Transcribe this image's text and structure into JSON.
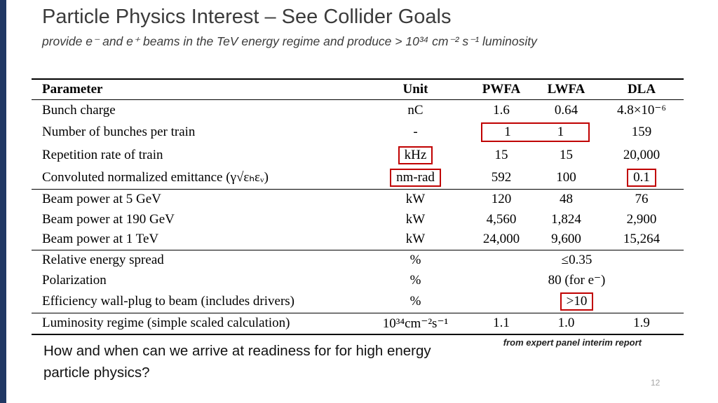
{
  "slide": {
    "title": "Particle Physics Interest – See Collider Goals",
    "subtitle": "provide e⁻ and e⁺ beams in the TeV energy regime and produce > 10³⁴ cm⁻² s⁻¹ luminosity",
    "question": "How and when can we arrive at readiness for for high energy particle physics?",
    "source_note": "from expert panel interim report",
    "page_number": "12"
  },
  "colors": {
    "highlight_red": "#c00000",
    "sidebar_navy": "#203864"
  },
  "table": {
    "headers": {
      "parameter": "Parameter",
      "unit": "Unit",
      "pwfa": "PWFA",
      "lwfa": "LWFA",
      "dla": "DLA"
    },
    "rows": [
      {
        "param": "Bunch charge",
        "unit": "nC",
        "pwfa": "1.6",
        "lwfa": "0.64",
        "dla": "4.8×10⁻⁶"
      },
      {
        "param": "Number of bunches per train",
        "unit": "-",
        "pwfa": "1",
        "lwfa": "1",
        "dla": "159",
        "highlighted": "pwfa and lwfa boxed together in red"
      },
      {
        "param": "Repetition rate of train",
        "unit": "kHz",
        "pwfa": "15",
        "lwfa": "15",
        "dla": "20,000",
        "highlighted": "unit boxed in red"
      },
      {
        "param": "Convoluted normalized emittance (γ√εₕεᵥ)",
        "unit": "nm-rad",
        "pwfa": "592",
        "lwfa": "100",
        "dla": "0.1",
        "highlighted": "unit and dla boxed in red"
      },
      {
        "param": "Beam power at 5 GeV",
        "unit": "kW",
        "pwfa": "120",
        "lwfa": "48",
        "dla": "76"
      },
      {
        "param": "Beam power at 190 GeV",
        "unit": "kW",
        "pwfa": "4,560",
        "lwfa": "1,824",
        "dla": "2,900"
      },
      {
        "param": "Beam power at 1 TeV",
        "unit": "kW",
        "pwfa": "24,000",
        "lwfa": "9,600",
        "dla": "15,264"
      },
      {
        "param": "Relative energy spread",
        "unit": "%",
        "span_value": "≤0.35"
      },
      {
        "param": "Polarization",
        "unit": "%",
        "span_value": "80 (for e⁻)"
      },
      {
        "param": "Efficiency wall-plug to beam (includes drivers)",
        "unit": "%",
        "span_value": ">10",
        "highlighted": "span value boxed in red"
      },
      {
        "param": "Luminosity regime (simple scaled calculation)",
        "unit": "10³⁴cm⁻²s⁻¹",
        "pwfa": "1.1",
        "lwfa": "1.0",
        "dla": "1.9"
      }
    ]
  }
}
